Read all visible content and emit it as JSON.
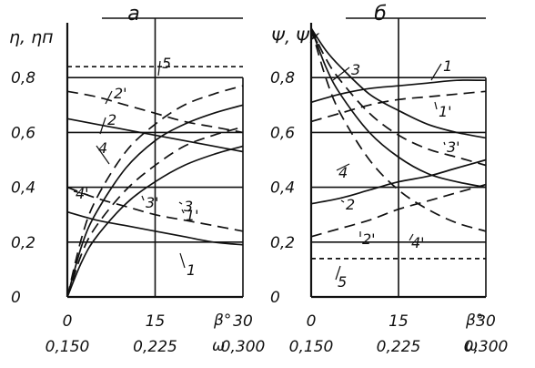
{
  "chart_data": [
    {
      "type": "line",
      "title": "а",
      "ylabel": "η, ηп",
      "x_top_label": "β°",
      "x_bottom_label": "ω",
      "x_ticks": [
        "0",
        "15",
        "30"
      ],
      "x_ticks_secondary": [
        "0,150",
        "0,225",
        "0,300"
      ],
      "y_ticks": [
        "0",
        "0,2",
        "0,4",
        "0,6",
        "0,8"
      ],
      "xlim": [
        0,
        30
      ],
      "ylim": [
        0,
        1.0
      ],
      "series": [
        {
          "name": "1",
          "style": "solid",
          "x": [
            0,
            5,
            10,
            15,
            20,
            25,
            30
          ],
          "y": [
            0.31,
            0.28,
            0.26,
            0.24,
            0.22,
            0.2,
            0.19
          ]
        },
        {
          "name": "1'",
          "style": "dashed",
          "x": [
            0,
            5,
            10,
            15,
            20,
            25,
            30
          ],
          "y": [
            0.4,
            0.36,
            0.33,
            0.3,
            0.28,
            0.26,
            0.24
          ]
        },
        {
          "name": "2",
          "style": "solid",
          "x": [
            0,
            5,
            10,
            15,
            20,
            25,
            30
          ],
          "y": [
            0.65,
            0.63,
            0.61,
            0.59,
            0.57,
            0.55,
            0.53
          ]
        },
        {
          "name": "2'",
          "style": "dashed",
          "x": [
            0,
            5,
            10,
            15,
            20,
            25,
            30
          ],
          "y": [
            0.75,
            0.73,
            0.7,
            0.67,
            0.64,
            0.62,
            0.6
          ]
        },
        {
          "name": "3",
          "style": "solid",
          "x": [
            0,
            2.5,
            5,
            10,
            15,
            20,
            25,
            30
          ],
          "y": [
            0.0,
            0.13,
            0.22,
            0.34,
            0.42,
            0.48,
            0.52,
            0.55
          ]
        },
        {
          "name": "3'",
          "style": "dashed",
          "x": [
            0,
            2.5,
            5,
            10,
            15,
            20,
            25,
            30
          ],
          "y": [
            0.0,
            0.16,
            0.26,
            0.39,
            0.48,
            0.55,
            0.59,
            0.62
          ]
        },
        {
          "name": "4",
          "style": "solid",
          "x": [
            0,
            2.5,
            5,
            10,
            15,
            20,
            25,
            30
          ],
          "y": [
            0.0,
            0.19,
            0.31,
            0.47,
            0.57,
            0.63,
            0.67,
            0.7
          ]
        },
        {
          "name": "4'",
          "style": "dashed",
          "x": [
            0,
            2.5,
            5,
            10,
            15,
            20,
            25,
            30
          ],
          "y": [
            0.0,
            0.22,
            0.36,
            0.53,
            0.63,
            0.7,
            0.74,
            0.77
          ]
        },
        {
          "name": "5",
          "style": "dotted",
          "x": [
            0,
            30
          ],
          "y": [
            0.84,
            0.84
          ]
        }
      ]
    },
    {
      "type": "line",
      "title": "б",
      "ylabel": "Ψ, Ψк",
      "x_top_label": "β°",
      "x_bottom_label": "ω",
      "x_ticks": [
        "0",
        "15",
        "30"
      ],
      "x_ticks_secondary": [
        "0,150",
        "0,225",
        "0,300"
      ],
      "y_ticks": [
        "0",
        "0,2",
        "0,4",
        "0,6",
        "0,8"
      ],
      "xlim": [
        0,
        30
      ],
      "ylim": [
        0,
        1.0
      ],
      "series": [
        {
          "name": "1",
          "style": "solid",
          "x": [
            0,
            5,
            10,
            15,
            20,
            25,
            30
          ],
          "y": [
            0.71,
            0.74,
            0.76,
            0.77,
            0.78,
            0.79,
            0.79
          ]
        },
        {
          "name": "1'",
          "style": "dashed",
          "x": [
            0,
            5,
            10,
            15,
            20,
            25,
            30
          ],
          "y": [
            0.64,
            0.67,
            0.7,
            0.72,
            0.73,
            0.74,
            0.75
          ]
        },
        {
          "name": "2",
          "style": "solid",
          "x": [
            0,
            5,
            10,
            15,
            20,
            25,
            30
          ],
          "y": [
            0.34,
            0.36,
            0.39,
            0.42,
            0.44,
            0.47,
            0.5
          ]
        },
        {
          "name": "2'",
          "style": "dashed",
          "x": [
            0,
            5,
            10,
            15,
            20,
            25,
            30
          ],
          "y": [
            0.22,
            0.25,
            0.28,
            0.32,
            0.35,
            0.38,
            0.41
          ]
        },
        {
          "name": "3",
          "style": "solid",
          "x": [
            0,
            2.5,
            5,
            10,
            15,
            20,
            25,
            30
          ],
          "y": [
            0.98,
            0.9,
            0.84,
            0.74,
            0.68,
            0.63,
            0.6,
            0.58
          ]
        },
        {
          "name": "3'",
          "style": "dashed",
          "x": [
            0,
            2.5,
            5,
            10,
            15,
            20,
            25,
            30
          ],
          "y": [
            0.98,
            0.87,
            0.79,
            0.67,
            0.59,
            0.54,
            0.51,
            0.48
          ]
        },
        {
          "name": "4",
          "style": "solid",
          "x": [
            0,
            2.5,
            5,
            10,
            15,
            20,
            25,
            30
          ],
          "y": [
            0.98,
            0.84,
            0.74,
            0.6,
            0.51,
            0.45,
            0.42,
            0.4
          ]
        },
        {
          "name": "4'",
          "style": "dashed",
          "x": [
            0,
            2.5,
            5,
            10,
            15,
            20,
            25,
            30
          ],
          "y": [
            0.98,
            0.8,
            0.67,
            0.5,
            0.39,
            0.32,
            0.27,
            0.24
          ]
        },
        {
          "name": "5",
          "style": "dotted",
          "x": [
            0,
            30
          ],
          "y": [
            0.14,
            0.14
          ]
        }
      ]
    }
  ]
}
